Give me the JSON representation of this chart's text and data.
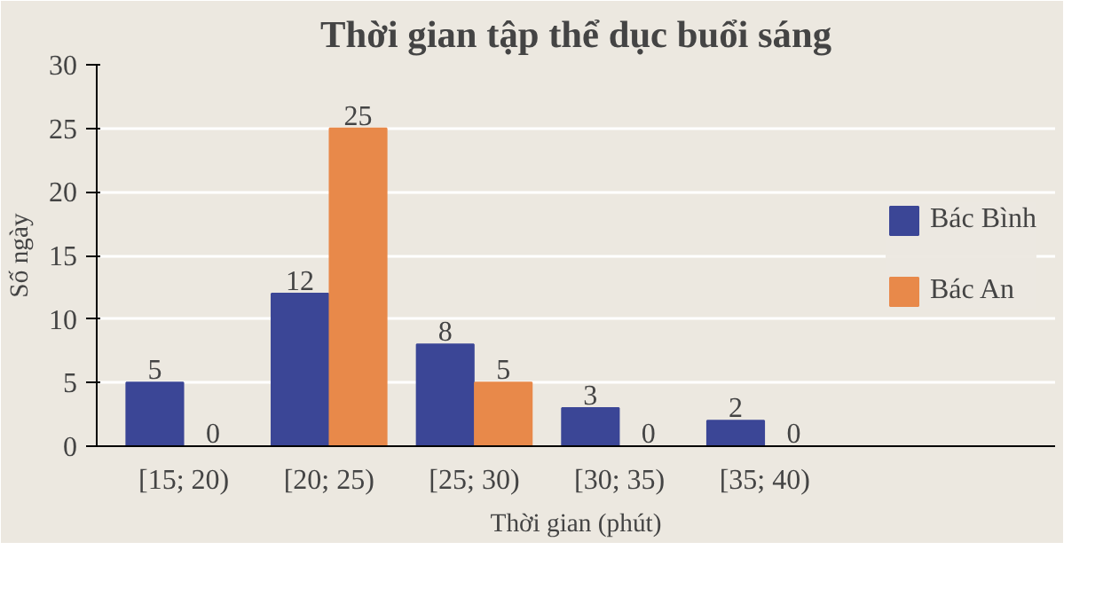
{
  "chart_data": {
    "type": "bar",
    "title": "Thời gian tập thể dục buổi sáng",
    "xlabel": "Thời gian (phút)",
    "ylabel": "Số ngày",
    "categories": [
      "[15; 20)",
      "[20; 25)",
      "[25; 30)",
      "[30; 35)",
      "[35; 40)"
    ],
    "series": [
      {
        "name": "Bác Bình",
        "color": "#3b4696",
        "values": [
          5,
          12,
          8,
          3,
          2
        ]
      },
      {
        "name": "Bác An",
        "color": "#e8894a",
        "values": [
          0,
          25,
          5,
          0,
          0
        ]
      }
    ],
    "ylim": [
      0,
      30
    ],
    "yticks": [
      0,
      5,
      10,
      15,
      20,
      25,
      30
    ],
    "grid": "y",
    "legend": "right",
    "data_labels": true
  }
}
